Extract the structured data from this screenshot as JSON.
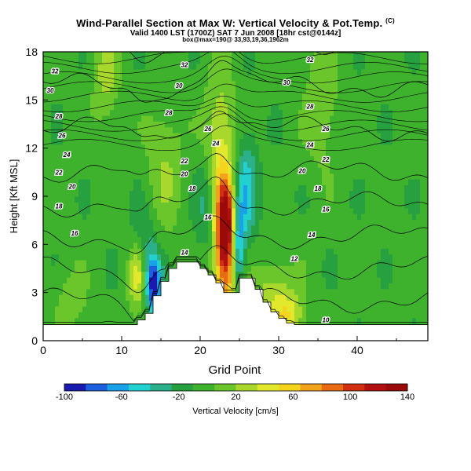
{
  "chart_data": {
    "type": "heatmap",
    "title": "Wind-Parallel Section at Max W: Vertical Velocity & Pot.Temp.",
    "copyright": "(C)",
    "subtitle": "Valid 1400 LST (1700Z) SAT 7 Jun 2008 [18hr cst@0144z]",
    "subtitle2": "box@max=190@ 33,93,19,36,1962m",
    "xlabel": "Grid Point",
    "ylabel": "Height [Kft MSL]",
    "xlim": [
      0,
      49
    ],
    "ylim": [
      0,
      18
    ],
    "x_ticks": [
      0,
      10,
      20,
      30,
      40
    ],
    "y_ticks": [
      0,
      3,
      6,
      9,
      12,
      15,
      18
    ],
    "colorbar": {
      "label": "Vertical Velocity [cm/s]",
      "tick_labels": [
        "-100",
        "-60",
        "-20",
        "20",
        "60",
        "100",
        "140"
      ],
      "range": [
        -100,
        140
      ],
      "colors": [
        "#1a1ab0",
        "#1e5fe0",
        "#19a2e8",
        "#22d0d0",
        "#2bb08a",
        "#27a040",
        "#3fb22d",
        "#6ac62a",
        "#a9d82c",
        "#e2e82c",
        "#f5d41e",
        "#f3a21c",
        "#e86a14",
        "#d03010",
        "#b01010",
        "#9a0a0a"
      ]
    },
    "isentropes": {
      "levels": [
        10,
        12,
        14,
        16,
        18,
        20,
        22,
        24,
        26,
        28,
        30,
        32
      ],
      "labels": [
        {
          "x": 1.5,
          "y": 16.8,
          "t": "32"
        },
        {
          "x": 0.9,
          "y": 15.6,
          "t": "30"
        },
        {
          "x": 2.0,
          "y": 14.0,
          "t": "28"
        },
        {
          "x": 2.4,
          "y": 12.8,
          "t": "26"
        },
        {
          "x": 3.0,
          "y": 11.6,
          "t": "24"
        },
        {
          "x": 2.0,
          "y": 10.5,
          "t": "22"
        },
        {
          "x": 3.7,
          "y": 9.6,
          "t": "20"
        },
        {
          "x": 2.0,
          "y": 8.4,
          "t": "18"
        },
        {
          "x": 4.0,
          "y": 6.7,
          "t": "16"
        },
        {
          "x": 18.0,
          "y": 5.5,
          "t": "14"
        },
        {
          "x": 18.0,
          "y": 17.2,
          "t": "32"
        },
        {
          "x": 17.3,
          "y": 15.9,
          "t": "30"
        },
        {
          "x": 16.0,
          "y": 14.2,
          "t": "28"
        },
        {
          "x": 21.0,
          "y": 13.2,
          "t": "26"
        },
        {
          "x": 22.0,
          "y": 12.3,
          "t": "24"
        },
        {
          "x": 18.0,
          "y": 11.2,
          "t": "22"
        },
        {
          "x": 18.0,
          "y": 10.4,
          "t": "20"
        },
        {
          "x": 19.0,
          "y": 9.5,
          "t": "18"
        },
        {
          "x": 21.0,
          "y": 7.7,
          "t": "16"
        },
        {
          "x": 34.0,
          "y": 17.5,
          "t": "32"
        },
        {
          "x": 31.0,
          "y": 16.1,
          "t": "30"
        },
        {
          "x": 34.0,
          "y": 14.6,
          "t": "28"
        },
        {
          "x": 36.0,
          "y": 13.2,
          "t": "26"
        },
        {
          "x": 34.0,
          "y": 12.2,
          "t": "24"
        },
        {
          "x": 36.0,
          "y": 11.3,
          "t": "22"
        },
        {
          "x": 33.0,
          "y": 10.6,
          "t": "20"
        },
        {
          "x": 35.0,
          "y": 9.5,
          "t": "18"
        },
        {
          "x": 36.0,
          "y": 8.2,
          "t": "16"
        },
        {
          "x": 34.2,
          "y": 6.6,
          "t": "14"
        },
        {
          "x": 32.0,
          "y": 5.1,
          "t": "12"
        },
        {
          "x": 36.0,
          "y": 1.3,
          "t": "10"
        }
      ]
    },
    "terrain": [
      1,
      1,
      1,
      1,
      1,
      1,
      1,
      1,
      1,
      1,
      1,
      1,
      1.3,
      1.7,
      2.8,
      3.7,
      4.5,
      4.9,
      4.9,
      4.9,
      4.5,
      4.1,
      3.6,
      3.0,
      3.0,
      3.9,
      3.9,
      3.2,
      2.4,
      1.8,
      1.4,
      1.1,
      1,
      1,
      1,
      1,
      1,
      1,
      1,
      1,
      1,
      1,
      1,
      1,
      1,
      1,
      1,
      1,
      1
    ]
  }
}
